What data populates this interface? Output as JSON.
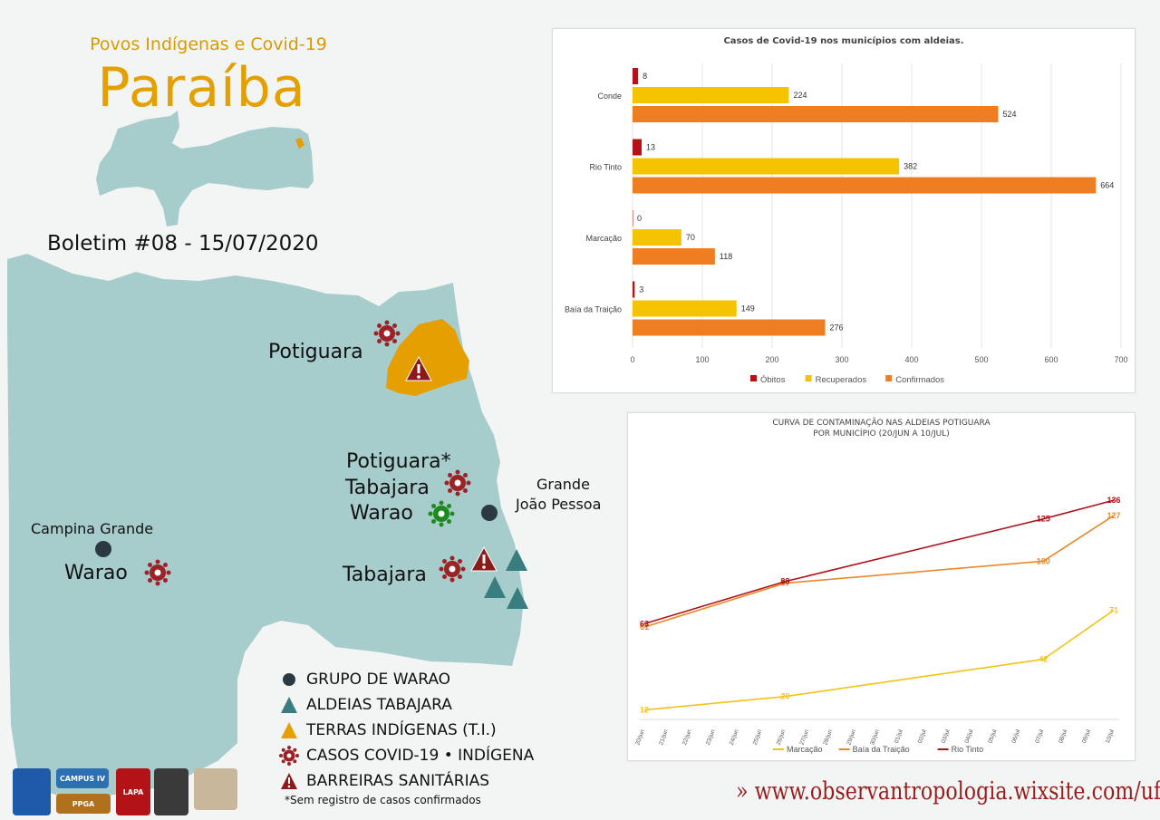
{
  "header": {
    "subtitle": "Povos Indígenas e Covid-19",
    "title": "Paraíba",
    "bulletin": "Boletim #08 - 15/07/2020"
  },
  "colors": {
    "land": "#a7cccc",
    "indigenous_land": "#e59f00",
    "covid_case": "#9b2226",
    "no_case": "#1e8a1e",
    "warao_group": "#2b3a42",
    "tabajara_village": "#3a7d80",
    "order_red": "#9b1c1c",
    "title_orange": "#e3a000"
  },
  "map": {
    "places": {
      "potiguara_north": "Potiguara",
      "potiguara_south": "Potiguara*",
      "tabajara_north": "Tabajara",
      "warao_jp": "Warao",
      "tabajara_south": "Tabajara",
      "campina_grande": "Campina Grande",
      "warao_cg": "Warao",
      "grande_joao_pessoa_1": "Grande",
      "grande_joao_pessoa_2": "João Pessoa"
    }
  },
  "legend": {
    "items": [
      {
        "icon": "circle-icon",
        "label": "GRUPO DE WARAO"
      },
      {
        "icon": "triangle-icon",
        "label": "ALDEIAS TABAJARA"
      },
      {
        "icon": "triangle-icon",
        "label": "TERRAS INDÍGENAS (T.I.)"
      },
      {
        "icon": "virus-icon",
        "label": "CASOS COVID-19 • INDÍGENA"
      },
      {
        "icon": "warning-icon",
        "label": "BARREIRAS SANITÁRIAS"
      }
    ],
    "footnote": "*Sem registro de casos confirmados"
  },
  "chart_data": [
    {
      "type": "bar",
      "title": "Casos de Covid-19 nos municípios com aldeias.",
      "categories": [
        "Conde",
        "Rio Tinto",
        "Marcação",
        "Baía da Traição"
      ],
      "series": [
        {
          "name": "Óbitos",
          "color": "#b31217",
          "values": [
            8,
            13,
            0,
            3
          ]
        },
        {
          "name": "Recuperados",
          "color": "#f5c400",
          "values": [
            224,
            382,
            70,
            149
          ]
        },
        {
          "name": "Confirmados",
          "color": "#ef7d22",
          "values": [
            524,
            664,
            118,
            276
          ]
        }
      ],
      "xlim": [
        0,
        700
      ],
      "xticks": [
        "0",
        "100",
        "200",
        "300",
        "400",
        "500",
        "600",
        "700"
      ],
      "orientation": "horizontal",
      "legend": "bottom",
      "grid": true
    },
    {
      "type": "line",
      "title": "CURVA DE CONTAMINAÇÃO NAS ALDEIAS POTIGUARA",
      "subtitle": "POR MUNICÍPIO (20/JUN A 10/JUL)",
      "x": [
        "20/jun",
        "21/jun",
        "22/jun",
        "23/jun",
        "24/jun",
        "25/jun",
        "26/jun",
        "27/jun",
        "28/jun",
        "29/jun",
        "30/jun",
        "01/jul",
        "02/jul",
        "03/jul",
        "04/jul",
        "05/jul",
        "06/jul",
        "07/jul",
        "08/jul",
        "09/jul",
        "10/jul"
      ],
      "series": [
        {
          "name": "Marcação",
          "color": "#f2c318",
          "points": [
            [
              0,
              12
            ],
            [
              6,
              20
            ],
            [
              17,
              42
            ],
            [
              20,
              71
            ]
          ],
          "labels": [
            "12",
            "20",
            "42",
            "71"
          ]
        },
        {
          "name": "Baía da Traição",
          "color": "#e8882a",
          "points": [
            [
              0,
              61
            ],
            [
              6,
              87
            ],
            [
              17,
              100
            ],
            [
              20,
              127
            ]
          ],
          "labels": [
            "61",
            "87",
            "100",
            "127"
          ]
        },
        {
          "name": "Rio Tinto",
          "color": "#b0121a",
          "points": [
            [
              0,
              63
            ],
            [
              6,
              88
            ],
            [
              17,
              125
            ],
            [
              20,
              136
            ]
          ],
          "labels": [
            "63",
            "88",
            "125",
            "136"
          ]
        }
      ],
      "ylim": [
        0,
        150
      ],
      "legend": "bottom"
    }
  ],
  "footer": {
    "url": "»  www.observantropologia.wixsite.com/ufpb",
    "logo_labels": [
      "CAMPUS IV",
      "PPGA",
      "LAPA"
    ]
  }
}
